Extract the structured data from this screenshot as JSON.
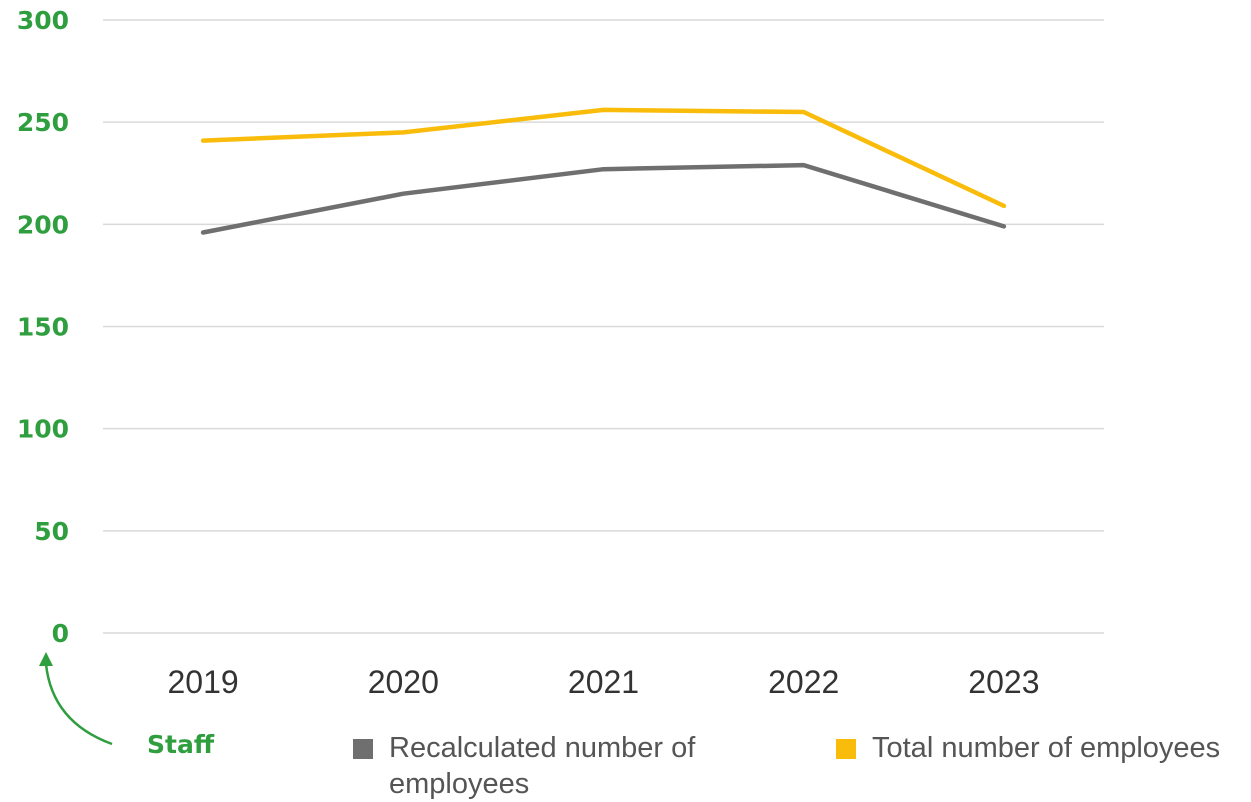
{
  "chart_data": {
    "type": "line",
    "categories": [
      "2019",
      "2020",
      "2021",
      "2022",
      "2023"
    ],
    "series": [
      {
        "name": "Recalculated number of employees",
        "color": "#706f6f",
        "values": [
          196,
          215,
          227,
          229,
          199
        ]
      },
      {
        "name": "Total number of employees",
        "color": "#f9bc0b",
        "values": [
          241,
          245,
          256,
          255,
          209
        ]
      }
    ],
    "y_ticks": [
      "0",
      "50",
      "100",
      "150",
      "200",
      "250",
      "300"
    ],
    "ylim": [
      0,
      300
    ],
    "ylabel": "Staff",
    "grid": true,
    "legend_position": "bottom",
    "axis_label_color": "#2e9e3e",
    "gridline_color": "#d9d9d9",
    "arrow_icon": "curved-arrow-up-icon"
  }
}
